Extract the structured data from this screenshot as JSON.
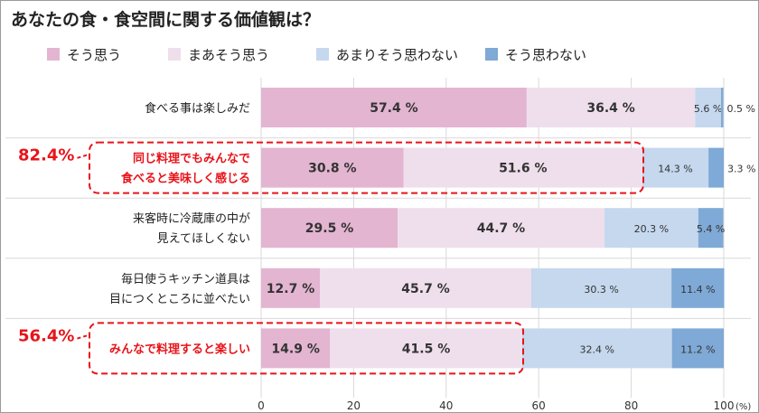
{
  "chart_data": {
    "type": "bar",
    "stacked": "horizontal-100",
    "title": "あなたの食・食空間に関する価値観は？",
    "categories": [
      [
        "食べる事は楽しみだ"
      ],
      [
        "同じ料理でもみんなで",
        "食べると美味しく感じる"
      ],
      [
        "来客時に冷蔵庫の中が",
        "見えてほしくない"
      ],
      [
        "毎日使うキッチン道具は",
        "目につくところに並べたい"
      ],
      [
        "みんなで料理すると楽しい"
      ]
    ],
    "series": [
      {
        "name": "そう思う",
        "color": "#e3b5d1",
        "values": [
          57.4,
          30.8,
          29.5,
          12.7,
          14.9
        ]
      },
      {
        "name": "まあそう思う",
        "color": "#efdfec",
        "values": [
          36.4,
          51.6,
          44.7,
          45.7,
          41.5
        ]
      },
      {
        "name": "あまりそう思わない",
        "color": "#c5d8ee",
        "values": [
          5.6,
          14.3,
          20.3,
          30.3,
          32.4
        ]
      },
      {
        "name": "そう思わない",
        "color": "#7fa9d6",
        "values": [
          0.5,
          3.3,
          5.4,
          11.4,
          11.2
        ]
      }
    ],
    "labels": [
      [
        "57.4 %",
        "36.4 %",
        "5.6 %",
        "0.5 %"
      ],
      [
        "30.8 %",
        "51.6 %",
        "14.3 %",
        "3.3 %"
      ],
      [
        "29.5 %",
        "44.7 %",
        "20.3 %",
        "5.4 %"
      ],
      [
        "12.7 %",
        "45.7 %",
        "30.3 %",
        "11.4 %"
      ],
      [
        "14.9 %",
        "41.5 %",
        "32.4 %",
        "11.2 %"
      ]
    ],
    "xlim": [
      0,
      100
    ],
    "xticks": [
      "0",
      "20",
      "40",
      "60",
      "80",
      "100"
    ],
    "xunit": "(%)",
    "highlights": [
      {
        "row": 1,
        "label": "82.4%"
      },
      {
        "row": 4,
        "label": "56.4%"
      }
    ],
    "highlight_color": "#e8141a",
    "grid": true,
    "legend": "top"
  }
}
